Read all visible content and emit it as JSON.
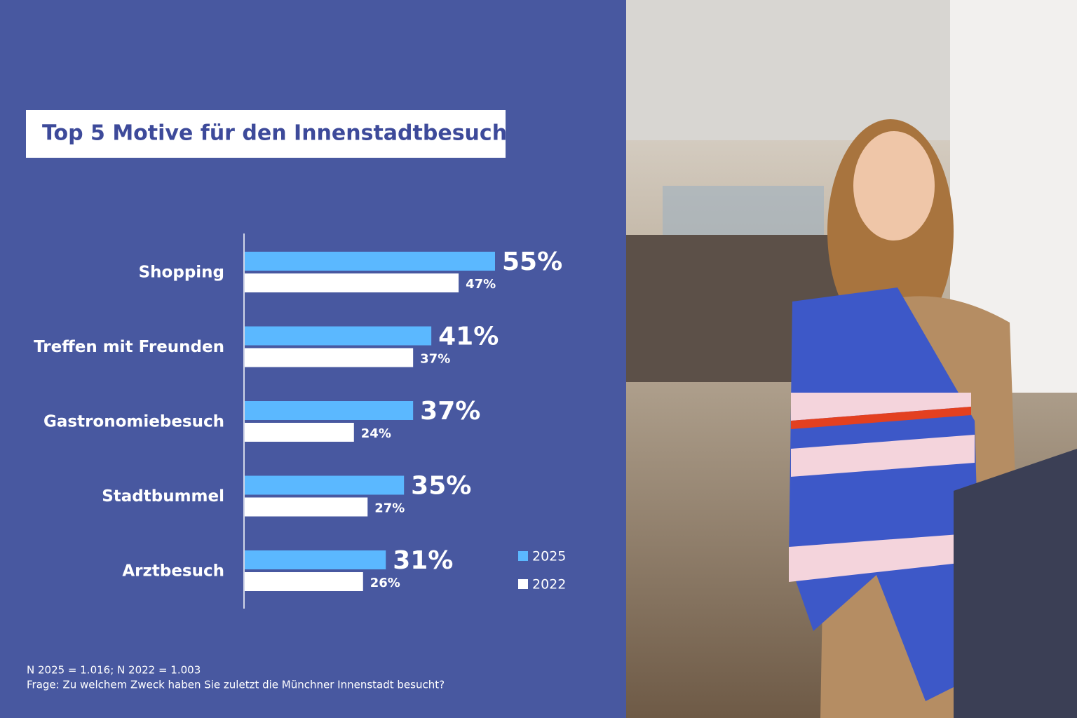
{
  "chart_data": {
    "type": "hbar",
    "title": "Top 5 Motive für den Innenstadtbesuch",
    "categories": [
      "Shopping",
      "Treffen mit Freunden",
      "Gastronomiebesuch",
      "Stadtbummel",
      "Arztbesuch"
    ],
    "series": [
      {
        "name": "2025",
        "color": "#5bb8ff",
        "values": [
          55,
          41,
          37,
          35,
          31
        ],
        "value_labels": [
          "55%",
          "41%",
          "37%",
          "35%",
          "31%"
        ]
      },
      {
        "name": "2022",
        "color": "#ffffff",
        "values": [
          47,
          37,
          24,
          27,
          26
        ],
        "value_labels": [
          "47%",
          "37%",
          "24%",
          "27%",
          "26%"
        ]
      }
    ],
    "annotations": [
      "N 2025 = 1.016; N 2022 = 1.003",
      "Frage: Zu welchem Zweck haben Sie zuletzt die Münchner Innenstadt besucht?"
    ]
  }
}
